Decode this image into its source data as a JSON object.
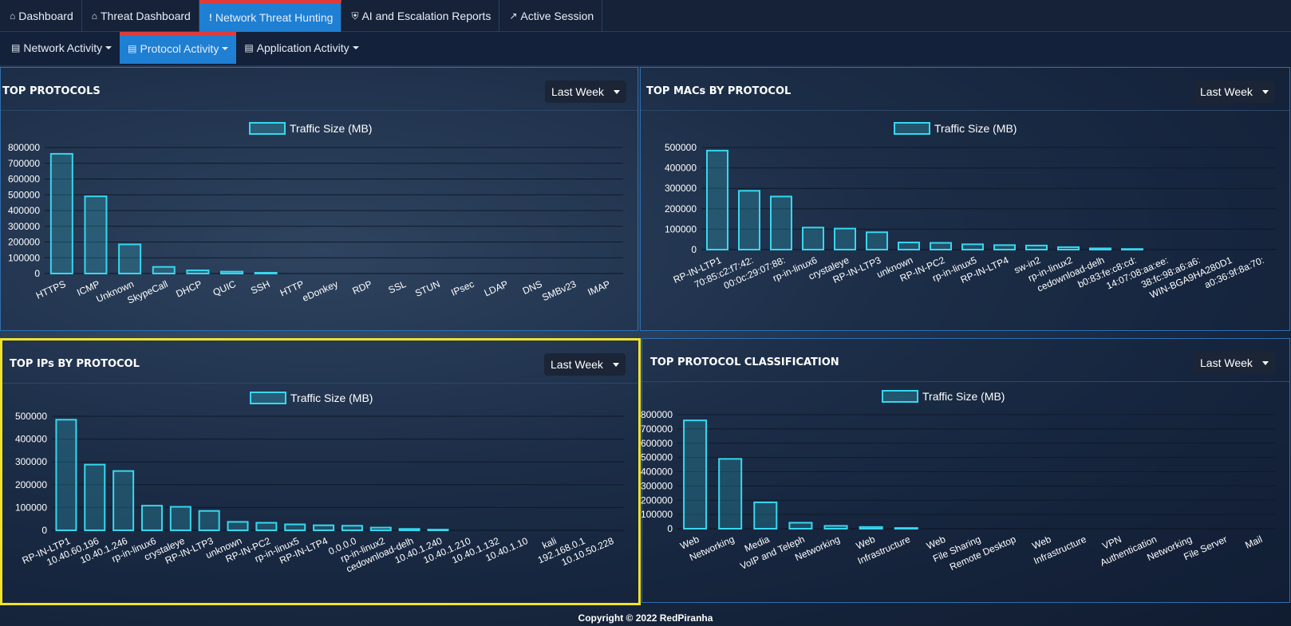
{
  "topnav": [
    {
      "label": "Dashboard",
      "icon": "home-icon",
      "glyph": "⌂"
    },
    {
      "label": "Threat Dashboard",
      "icon": "home-icon",
      "glyph": "⌂"
    },
    {
      "label": "Network Threat Hunting",
      "icon": "exclamation-icon",
      "glyph": "!"
    },
    {
      "label": "AI and Escalation Reports",
      "icon": "shield-icon",
      "glyph": "⛨"
    },
    {
      "label": "Active Session",
      "icon": "line-chart-icon",
      "glyph": "↗"
    }
  ],
  "subnav": [
    {
      "label": "Network Activity"
    },
    {
      "label": "Protocol Activity"
    },
    {
      "label": "Application Activity"
    }
  ],
  "accent_color": "#1e7fd3",
  "active_indicator_color": "#e03a3a",
  "bar_color": "#37d7ee",
  "highlight_color": "#f2e22a",
  "panels": [
    {
      "title": "TOP PROTOCOLS",
      "range": "Last Week",
      "chart_data": {
        "type": "bar",
        "legend": "Traffic Size (MB)",
        "categories": [
          "HTTPS",
          "ICMP",
          "Unknown",
          "SkypeCall",
          "DHCP",
          "QUIC",
          "SSH",
          "HTTP",
          "eDonkey",
          "RDP",
          "SSL",
          "STUN",
          "IPsec",
          "LDAP",
          "DNS",
          "SMBv23",
          "IMAP"
        ],
        "values": [
          760000,
          490000,
          185000,
          42000,
          20000,
          12000,
          5000,
          1000,
          400,
          300,
          200,
          150,
          100,
          80,
          60,
          40,
          30
        ],
        "yticks": [
          "800000",
          "700000",
          "600000",
          "500000",
          "400000",
          "300000",
          "200000",
          "100000",
          "0"
        ],
        "ylim": [
          0,
          800000
        ]
      }
    },
    {
      "title": "TOP MACs BY PROTOCOL",
      "range": "Last Week",
      "chart_data": {
        "type": "bar",
        "legend": "Traffic Size (MB)",
        "categories": [
          "RP-IN-LTP1",
          "70:85:c2:f7:42:",
          "00:0c:29:07:88:",
          "rp-in-linux6",
          "crystaleye",
          "RP-IN-LTP3",
          "unknown",
          "RP-IN-PC2",
          "rp-in-linux5",
          "RP-IN-LTP4",
          "sw-in2",
          "rp-in-linux2",
          "cedownload-delh",
          "b0:83:fe:c8:cd:",
          "14:07:08:aa:ee:",
          "38:fc:98:a6:a6:",
          "WIN-BGA9HA280D1",
          "a0:36:9f:8a:70:"
        ],
        "values": [
          485000,
          288000,
          260000,
          108000,
          103000,
          85000,
          35000,
          33000,
          26000,
          22000,
          20000,
          12000,
          6000,
          3000,
          2000,
          500,
          200,
          100
        ],
        "yticks": [
          "500000",
          "400000",
          "300000",
          "200000",
          "100000",
          "0"
        ],
        "ylim": [
          0,
          500000
        ]
      }
    },
    {
      "title": "TOP IPs BY PROTOCOL",
      "range": "Last Week",
      "chart_data": {
        "type": "bar",
        "legend": "Traffic Size (MB)",
        "categories": [
          "RP-IN-LTP1",
          "10.40.60.196",
          "10.40.1.246",
          "rp-in-linux6",
          "crystaleye",
          "RP-IN-LTP3",
          "unknown",
          "RP-IN-PC2",
          "rp-in-linux5",
          "RP-IN-LTP4",
          "0.0.0.0",
          "rp-in-linux2",
          "cedownload-delh",
          "10.40.1.240",
          "10.40.1.210",
          "10.40.1.132",
          "10.40.1.10",
          "kali",
          "192.168.0.1",
          "10.10.50.228"
        ],
        "values": [
          485000,
          288000,
          260000,
          108000,
          103000,
          85000,
          37000,
          33000,
          26000,
          22000,
          20000,
          12000,
          6000,
          3000,
          2000,
          800,
          300,
          200,
          100,
          50
        ],
        "yticks": [
          "500000",
          "400000",
          "300000",
          "200000",
          "100000",
          "0"
        ],
        "ylim": [
          0,
          500000
        ]
      }
    },
    {
      "title": "TOP PROTOCOL CLASSIFICATION",
      "range": "Last Week",
      "chart_data": {
        "type": "bar",
        "legend": "Traffic Size (MB)",
        "categories": [
          "Web",
          "Networking",
          "Media",
          "VoIP and Teleph",
          "Networking",
          "Web",
          "Infrastructure",
          "Web",
          "File Sharing",
          "Remote Desktop",
          "Web",
          "Infrastructure",
          "VPN",
          "Authentication",
          "Networking",
          "File Server",
          "Mail"
        ],
        "values": [
          760000,
          490000,
          185000,
          42000,
          20000,
          12000,
          5000,
          1000,
          400,
          300,
          200,
          150,
          100,
          80,
          60,
          40,
          30
        ],
        "yticks": [
          "800000",
          "700000",
          "600000",
          "500000",
          "400000",
          "300000",
          "200000",
          "100000",
          "0"
        ],
        "ylim": [
          0,
          800000
        ]
      }
    }
  ],
  "footer": "Copyright © 2022 RedPiranha"
}
